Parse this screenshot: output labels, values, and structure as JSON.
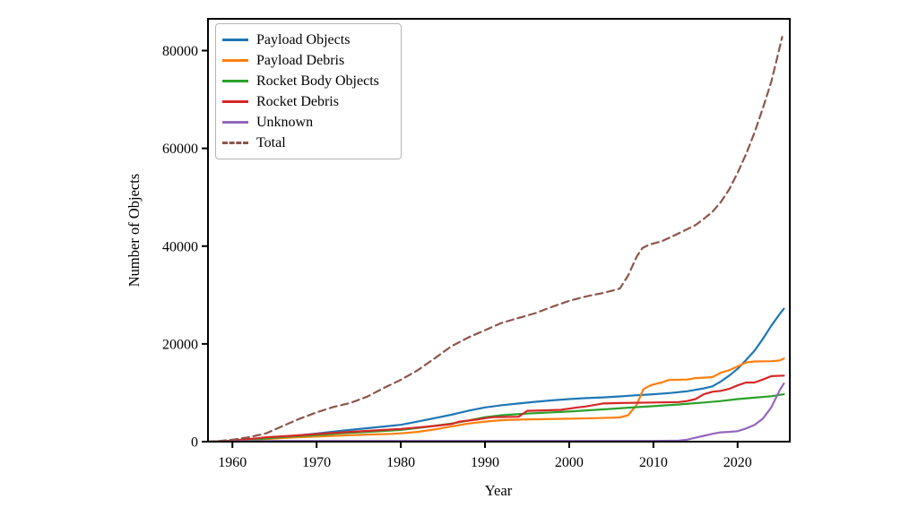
{
  "figure": {
    "background": "#ffffff",
    "frame_color": "#000000"
  },
  "chart_data": {
    "type": "line",
    "title": "",
    "xlabel": "Year",
    "ylabel": "Number of Objects",
    "xlim": [
      1957.1,
      2026.2
    ],
    "ylim": [
      0,
      86500
    ],
    "xticks": [
      1960,
      1970,
      1980,
      1990,
      2000,
      2010,
      2020
    ],
    "yticks": [
      0,
      20000,
      40000,
      60000,
      80000
    ],
    "grid": false,
    "legend_position": "upper-left",
    "series": [
      {
        "name": "Payload Objects",
        "color": "#1f77b4",
        "style": "solid",
        "points": [
          [
            1957,
            0
          ],
          [
            1958,
            20
          ],
          [
            1960,
            120
          ],
          [
            1962,
            350
          ],
          [
            1964,
            620
          ],
          [
            1966,
            950
          ],
          [
            1968,
            1300
          ],
          [
            1970,
            1650
          ],
          [
            1972,
            2050
          ],
          [
            1974,
            2400
          ],
          [
            1976,
            2750
          ],
          [
            1978,
            3100
          ],
          [
            1980,
            3450
          ],
          [
            1982,
            4100
          ],
          [
            1984,
            4800
          ],
          [
            1986,
            5500
          ],
          [
            1988,
            6300
          ],
          [
            1990,
            7000
          ],
          [
            1992,
            7450
          ],
          [
            1994,
            7800
          ],
          [
            1996,
            8150
          ],
          [
            1998,
            8450
          ],
          [
            2000,
            8700
          ],
          [
            2002,
            8900
          ],
          [
            2004,
            9050
          ],
          [
            2006,
            9250
          ],
          [
            2008,
            9500
          ],
          [
            2010,
            9700
          ],
          [
            2012,
            9950
          ],
          [
            2014,
            10300
          ],
          [
            2016,
            10900
          ],
          [
            2017,
            11300
          ],
          [
            2018,
            12300
          ],
          [
            2019,
            13500
          ],
          [
            2020,
            14900
          ],
          [
            2021,
            16700
          ],
          [
            2022,
            18600
          ],
          [
            2023,
            21000
          ],
          [
            2024,
            23700
          ],
          [
            2025,
            26100
          ],
          [
            2025.5,
            27200
          ]
        ]
      },
      {
        "name": "Payload Debris",
        "color": "#ff7f0e",
        "style": "solid",
        "points": [
          [
            1957,
            0
          ],
          [
            1959,
            30
          ],
          [
            1961,
            150
          ],
          [
            1963,
            400
          ],
          [
            1965,
            650
          ],
          [
            1967,
            850
          ],
          [
            1970,
            1050
          ],
          [
            1973,
            1250
          ],
          [
            1976,
            1450
          ],
          [
            1979,
            1600
          ],
          [
            1980,
            1700
          ],
          [
            1982,
            2000
          ],
          [
            1984,
            2500
          ],
          [
            1986,
            3100
          ],
          [
            1988,
            3700
          ],
          [
            1990,
            4100
          ],
          [
            1992,
            4400
          ],
          [
            1994,
            4500
          ],
          [
            1997,
            4600
          ],
          [
            2000,
            4700
          ],
          [
            2003,
            4800
          ],
          [
            2006,
            4950
          ],
          [
            2007,
            5400
          ],
          [
            2008,
            7500
          ],
          [
            2008.8,
            10700
          ],
          [
            2009.5,
            11400
          ],
          [
            2010,
            11700
          ],
          [
            2011,
            12100
          ],
          [
            2011.8,
            12600
          ],
          [
            2014,
            12700
          ],
          [
            2015,
            13000
          ],
          [
            2017,
            13200
          ],
          [
            2018,
            14100
          ],
          [
            2019,
            14600
          ],
          [
            2020,
            15400
          ],
          [
            2021,
            16200
          ],
          [
            2022,
            16400
          ],
          [
            2024,
            16450
          ],
          [
            2025,
            16600
          ],
          [
            2025.5,
            17000
          ]
        ]
      },
      {
        "name": "Rocket Body Objects",
        "color": "#2ca02c",
        "style": "solid",
        "points": [
          [
            1957,
            0
          ],
          [
            1959,
            60
          ],
          [
            1961,
            250
          ],
          [
            1963,
            500
          ],
          [
            1965,
            800
          ],
          [
            1967,
            1050
          ],
          [
            1970,
            1350
          ],
          [
            1973,
            1700
          ],
          [
            1976,
            2000
          ],
          [
            1980,
            2400
          ],
          [
            1983,
            3000
          ],
          [
            1986,
            3700
          ],
          [
            1988,
            4300
          ],
          [
            1990,
            5000
          ],
          [
            1992,
            5400
          ],
          [
            1995,
            5750
          ],
          [
            1998,
            6000
          ],
          [
            2000,
            6150
          ],
          [
            2004,
            6600
          ],
          [
            2008,
            7050
          ],
          [
            2010,
            7250
          ],
          [
            2013,
            7600
          ],
          [
            2016,
            8000
          ],
          [
            2018,
            8300
          ],
          [
            2020,
            8700
          ],
          [
            2022,
            9000
          ],
          [
            2024,
            9300
          ],
          [
            2025.5,
            9700
          ]
        ]
      },
      {
        "name": "Rocket Debris",
        "color": "#d62728",
        "style": "solid",
        "points": [
          [
            1957,
            0
          ],
          [
            1959,
            100
          ],
          [
            1961,
            400
          ],
          [
            1963,
            700
          ],
          [
            1964,
            900
          ],
          [
            1966,
            1100
          ],
          [
            1968,
            1300
          ],
          [
            1970,
            1550
          ],
          [
            1972,
            1800
          ],
          [
            1974,
            2000
          ],
          [
            1976,
            2200
          ],
          [
            1978,
            2400
          ],
          [
            1980,
            2600
          ],
          [
            1982,
            2900
          ],
          [
            1984,
            3200
          ],
          [
            1986,
            3600
          ],
          [
            1987,
            4100
          ],
          [
            1989,
            4500
          ],
          [
            1990,
            4800
          ],
          [
            1991,
            5000
          ],
          [
            1994,
            5100
          ],
          [
            1995,
            6300
          ],
          [
            1997,
            6400
          ],
          [
            1999,
            6500
          ],
          [
            2001,
            7000
          ],
          [
            2002,
            7200
          ],
          [
            2004,
            7800
          ],
          [
            2006,
            7900
          ],
          [
            2010,
            8000
          ],
          [
            2013,
            8100
          ],
          [
            2014,
            8300
          ],
          [
            2015,
            8700
          ],
          [
            2016,
            9700
          ],
          [
            2017,
            10200
          ],
          [
            2018,
            10400
          ],
          [
            2019,
            10800
          ],
          [
            2020,
            11500
          ],
          [
            2021,
            12100
          ],
          [
            2022,
            12100
          ],
          [
            2023,
            12700
          ],
          [
            2024,
            13400
          ],
          [
            2025.5,
            13500
          ]
        ]
      },
      {
        "name": "Unknown",
        "color": "#9467bd",
        "style": "solid",
        "points": [
          [
            1957,
            0
          ],
          [
            1960,
            50
          ],
          [
            1963,
            120
          ],
          [
            1966,
            150
          ],
          [
            1970,
            150
          ],
          [
            1980,
            150
          ],
          [
            1990,
            150
          ],
          [
            2000,
            150
          ],
          [
            2010,
            150
          ],
          [
            2013,
            200
          ],
          [
            2014,
            400
          ],
          [
            2015,
            800
          ],
          [
            2016,
            1200
          ],
          [
            2017,
            1600
          ],
          [
            2018,
            1900
          ],
          [
            2019,
            2000
          ],
          [
            2020,
            2150
          ],
          [
            2021,
            2700
          ],
          [
            2022,
            3400
          ],
          [
            2023,
            4700
          ],
          [
            2024,
            7000
          ],
          [
            2025,
            10500
          ],
          [
            2025.5,
            11900
          ]
        ]
      },
      {
        "name": "Total",
        "color": "#8c564b",
        "style": "dashed",
        "points": [
          [
            1957,
            0
          ],
          [
            1958,
            50
          ],
          [
            1960,
            400
          ],
          [
            1962,
            900
          ],
          [
            1964,
            1700
          ],
          [
            1966,
            3200
          ],
          [
            1968,
            4700
          ],
          [
            1970,
            6000
          ],
          [
            1972,
            7100
          ],
          [
            1974,
            7900
          ],
          [
            1976,
            9200
          ],
          [
            1978,
            11000
          ],
          [
            1980,
            12650
          ],
          [
            1982,
            14600
          ],
          [
            1984,
            17000
          ],
          [
            1986,
            19500
          ],
          [
            1988,
            21300
          ],
          [
            1990,
            22800
          ],
          [
            1992,
            24300
          ],
          [
            1994,
            25300
          ],
          [
            1996,
            26300
          ],
          [
            1998,
            27600
          ],
          [
            2000,
            28800
          ],
          [
            2002,
            29700
          ],
          [
            2004,
            30400
          ],
          [
            2006,
            31300
          ],
          [
            2007,
            34000
          ],
          [
            2008,
            37800
          ],
          [
            2008.7,
            39600
          ],
          [
            2009.5,
            40300
          ],
          [
            2011,
            41000
          ],
          [
            2013,
            42600
          ],
          [
            2015,
            44300
          ],
          [
            2016,
            45600
          ],
          [
            2017,
            47000
          ],
          [
            2018,
            49000
          ],
          [
            2019,
            51600
          ],
          [
            2020,
            55000
          ],
          [
            2021,
            58800
          ],
          [
            2022,
            63200
          ],
          [
            2023,
            68200
          ],
          [
            2024,
            73600
          ],
          [
            2024.7,
            78500
          ],
          [
            2025.3,
            82800
          ]
        ]
      }
    ]
  }
}
